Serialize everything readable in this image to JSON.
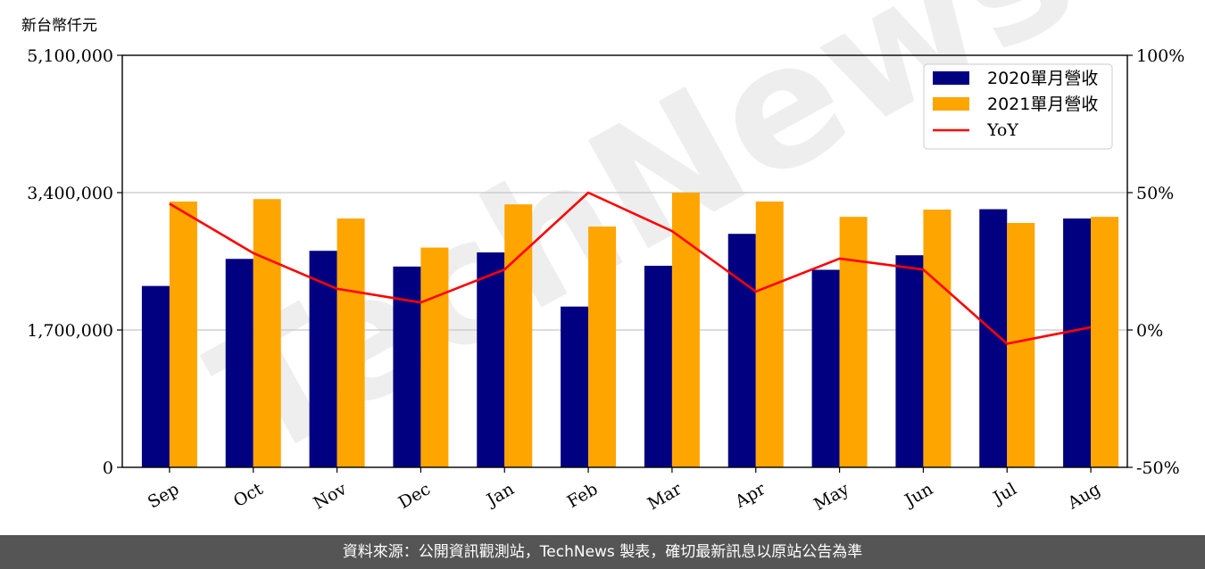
{
  "header": {
    "unit_label": "新台幣仟元"
  },
  "watermark": "TechNews",
  "footer": {
    "source_text": "資料來源：公開資訊觀測站，TechNews 製表，確切最新訊息以原站公告為準"
  },
  "colors": {
    "series2020": "#000080",
    "series2021": "#FFA500",
    "yoy": "#FF0000"
  },
  "chart_data": {
    "type": "bar",
    "categories": [
      "Sep",
      "Oct",
      "Nov",
      "Dec",
      "Jan",
      "Feb",
      "Mar",
      "Apr",
      "May",
      "Jun",
      "Jul",
      "Aug"
    ],
    "series": [
      {
        "name": "2020單月營收",
        "values": [
          2245000,
          2580000,
          2680000,
          2485000,
          2660000,
          1990000,
          2495000,
          2890000,
          2445000,
          2625000,
          3195000,
          3080000
        ]
      },
      {
        "name": "2021單月營收",
        "values": [
          3290000,
          3320000,
          3080000,
          2720000,
          3255000,
          2980000,
          3400000,
          3290000,
          3100000,
          3190000,
          3025000,
          3100000
        ]
      }
    ],
    "line_series": {
      "name": "YoY",
      "axis": "right",
      "values": [
        46,
        28,
        15,
        10,
        22,
        50,
        36,
        14,
        26,
        22,
        -5,
        1
      ]
    },
    "ylim": [
      0,
      5100000
    ],
    "y_ticks": [
      "0",
      "1,700,000",
      "3,400,000",
      "5,100,000"
    ],
    "y2lim": [
      -50,
      100
    ],
    "y2_ticks": [
      "-50%",
      "0%",
      "50%",
      "100%"
    ],
    "grid": "horizontal",
    "legend_position": "top-right"
  }
}
